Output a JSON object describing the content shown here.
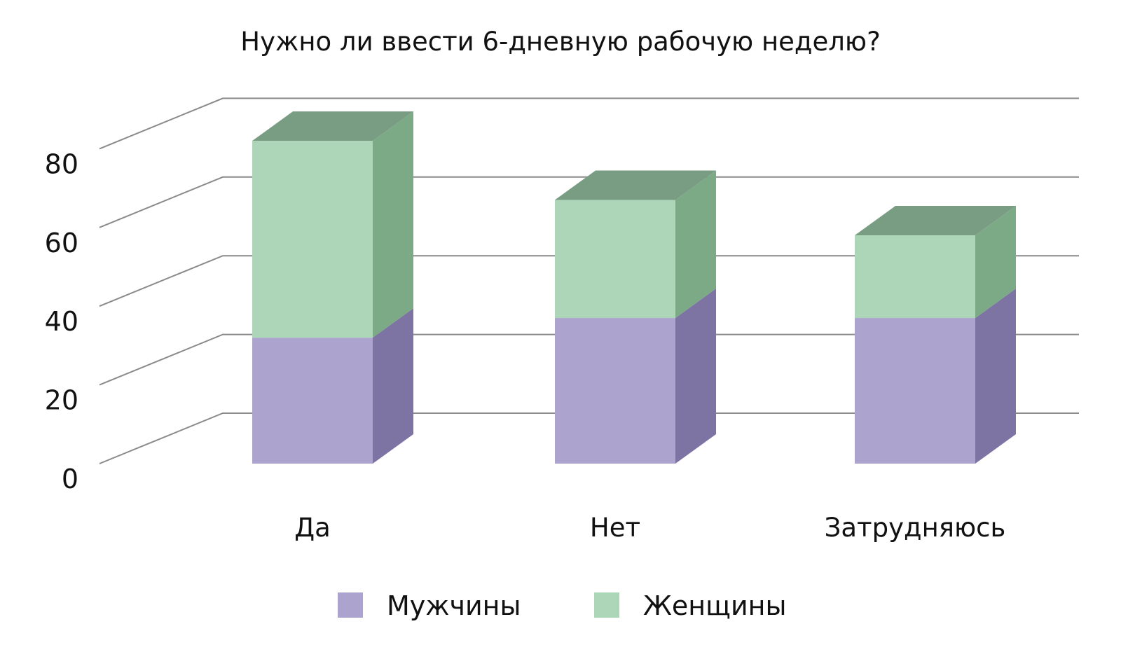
{
  "chart_data": {
    "type": "bar",
    "stacked": true,
    "three_d": true,
    "title": "Нужно ли ввести 6-дневную рабочую неделю?",
    "categories": [
      "Да",
      "Нет",
      "Затрудняюсь"
    ],
    "series": [
      {
        "name": "Мужчины",
        "values": [
          32,
          37,
          37
        ],
        "color": "#ada3cf",
        "side_color": "#7d74a4"
      },
      {
        "name": "Женщины",
        "values": [
          50,
          30,
          21
        ],
        "color": "#add6b8",
        "side_color": "#7ca986",
        "top_color": "#799d82"
      }
    ],
    "ylim": [
      0,
      80
    ],
    "yticks": [
      0,
      20,
      40,
      60,
      80
    ],
    "grid": true,
    "legend_position": "bottom"
  }
}
